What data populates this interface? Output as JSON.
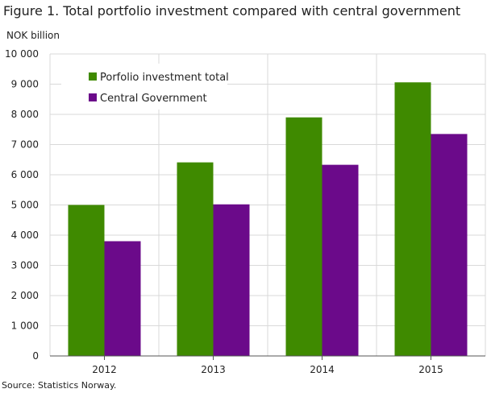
{
  "title": "Figure 1. Total portfolio investment compared with central government",
  "source": "Source: Statistics Norway.",
  "colors": {
    "green": "#3f8a00",
    "purple": "#6b0a8a",
    "grid": "#d9d9d9",
    "axis": "#555555",
    "legend_bg": "#ffffff"
  },
  "chart_data": {
    "type": "bar",
    "title": "Figure 1. Total portfolio investment compared with central government",
    "ylabel": "NOK billion",
    "xlabel": "",
    "categories": [
      "2012",
      "2013",
      "2014",
      "2015"
    ],
    "series": [
      {
        "name": "Porfolio investment total",
        "color": "#3f8a00",
        "values": [
          5000,
          6410,
          7900,
          9060
        ]
      },
      {
        "name": "Central Government",
        "color": "#6b0a8a",
        "values": [
          3800,
          5020,
          6330,
          7350
        ]
      }
    ],
    "ylim": [
      0,
      10000
    ],
    "yticks": [
      {
        "value": 0,
        "label": "0"
      },
      {
        "value": 1000,
        "label": "1 000"
      },
      {
        "value": 2000,
        "label": "2 000"
      },
      {
        "value": 3000,
        "label": "3 000"
      },
      {
        "value": 4000,
        "label": "4 000"
      },
      {
        "value": 5000,
        "label": "5 000"
      },
      {
        "value": 6000,
        "label": "6 000"
      },
      {
        "value": 7000,
        "label": "7 000"
      },
      {
        "value": 8000,
        "label": "8 000"
      },
      {
        "value": 9000,
        "label": "9 000"
      },
      {
        "value": 10000,
        "label": "10 000"
      }
    ],
    "grid": true,
    "legend": "top-left"
  }
}
